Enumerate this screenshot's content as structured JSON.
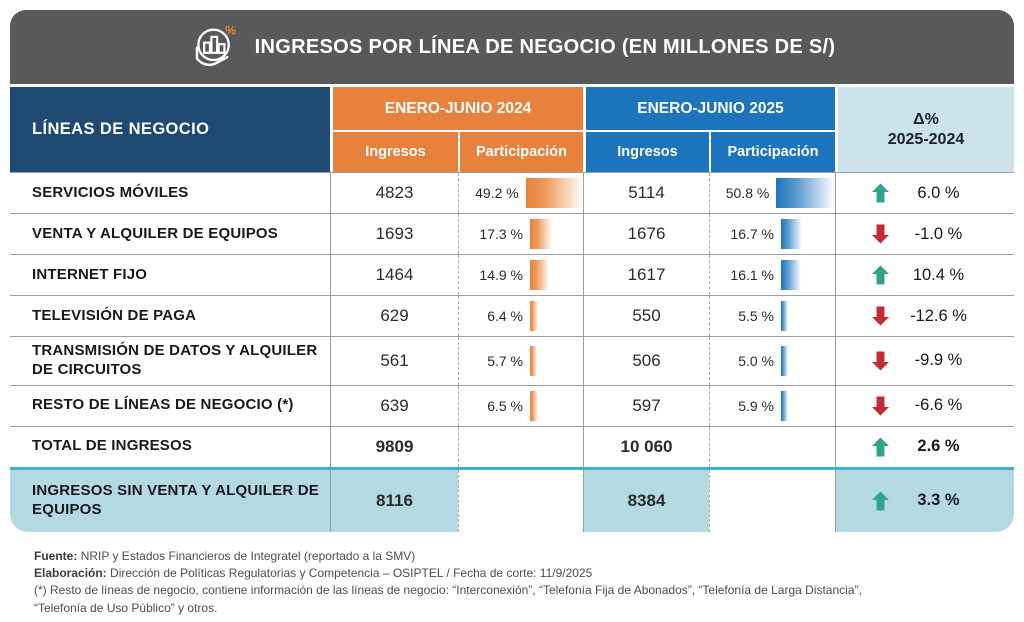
{
  "header": {
    "title": "INGRESOS POR LÍNEA DE NEGOCIO (EN MILLONES DE S/)"
  },
  "table": {
    "head": {
      "lines": "LÍNEAS DE NEGOCIO",
      "group_2024": "ENERO-JUNIO 2024",
      "group_2025": "ENERO-JUNIO 2025",
      "ingresos": "Ingresos",
      "participacion": "Participación",
      "delta_line1": "Δ%",
      "delta_line2": "2025-2024"
    },
    "rows": [
      {
        "name": "SERVICIOS MÓVILES",
        "ing2024": "4823",
        "part2024": 49.2,
        "part2024_label": "49.2 %",
        "ing2025": "5114",
        "part2025": 50.8,
        "part2025_label": "50.8 %",
        "delta": "6.0 %",
        "trend": "up",
        "total": false,
        "highlight": false
      },
      {
        "name": "VENTA Y ALQUILER DE EQUIPOS",
        "ing2024": "1693",
        "part2024": 17.3,
        "part2024_label": "17.3 %",
        "ing2025": "1676",
        "part2025": 16.7,
        "part2025_label": "16.7 %",
        "delta": "-1.0 %",
        "trend": "down",
        "total": false,
        "highlight": false
      },
      {
        "name": "INTERNET FIJO",
        "ing2024": "1464",
        "part2024": 14.9,
        "part2024_label": "14.9 %",
        "ing2025": "1617",
        "part2025": 16.1,
        "part2025_label": "16.1 %",
        "delta": "10.4 %",
        "trend": "up",
        "total": false,
        "highlight": false
      },
      {
        "name": "TELEVISIÓN DE PAGA",
        "ing2024": "629",
        "part2024": 6.4,
        "part2024_label": "6.4 %",
        "ing2025": "550",
        "part2025": 5.5,
        "part2025_label": "5.5 %",
        "delta": "-12.6 %",
        "trend": "down",
        "total": false,
        "highlight": false
      },
      {
        "name": "TRANSMISIÓN DE DATOS Y ALQUILER DE CIRCUITOS",
        "ing2024": "561",
        "part2024": 5.7,
        "part2024_label": "5.7 %",
        "ing2025": "506",
        "part2025": 5.0,
        "part2025_label": "5.0 %",
        "delta": "-9.9 %",
        "trend": "down",
        "total": false,
        "highlight": false
      },
      {
        "name": "RESTO DE LÍNEAS DE NEGOCIO (*)",
        "ing2024": "639",
        "part2024": 6.5,
        "part2024_label": "6.5 %",
        "ing2025": "597",
        "part2025": 5.9,
        "part2025_label": "5.9 %",
        "delta": "-6.6 %",
        "trend": "down",
        "total": false,
        "highlight": false
      },
      {
        "name": "TOTAL DE INGRESOS",
        "ing2024": "9809",
        "part2024": null,
        "part2024_label": "",
        "ing2025": "10 060",
        "part2025": null,
        "part2025_label": "",
        "delta": "2.6 %",
        "trend": "up",
        "total": true,
        "highlight": false
      },
      {
        "name": "INGRESOS SIN VENTA Y ALQUILER DE EQUIPOS",
        "ing2024": "8116",
        "part2024": null,
        "part2024_label": "",
        "ing2025": "8384",
        "part2025": null,
        "part2025_label": "",
        "delta": "3.3 %",
        "trend": "up",
        "total": true,
        "highlight": true
      }
    ]
  },
  "footer": {
    "fuente_label": "Fuente:",
    "fuente": "NRIP y Estados Financieros de Integratel (reportado a la SMV)",
    "elaboracion_label": "Elaboración:",
    "elaboracion": "Dirección de Políticas Regulatorias y Competencia – OSIPTEL / Fecha de corte: 11/9/2025",
    "note_line1": "(*) Resto de líneas de negocio, contiene información de las líneas de negocio: “Interconexión”, “Telefonía Fija de Abonados”, “Telefonía de Larga Distancia”,",
    "note_line2": "“Telefonía de Uso Público” y otros."
  },
  "colors": {
    "orange": "#E8813B",
    "blue": "#1C75BC",
    "navy": "#1D4973",
    "titlebar_gray": "#58595B",
    "delta_header_bg": "#CCE3EC",
    "highlight_row_bg": "#B5D9E3",
    "teal_divider": "#3BB4C6",
    "up_arrow_green": "#2EA48E",
    "down_arrow_red": "#C42A30"
  },
  "chart_data": {
    "type": "table",
    "title": "INGRESOS POR LÍNEA DE NEGOCIO (EN MILLONES DE S/)",
    "columns": [
      "LÍNEAS DE NEGOCIO",
      "ENERO-JUNIO 2024 Ingresos",
      "ENERO-JUNIO 2024 Participación (%)",
      "ENERO-JUNIO 2025 Ingresos",
      "ENERO-JUNIO 2025 Participación (%)",
      "Δ% 2025-2024"
    ],
    "rows": [
      [
        "SERVICIOS MÓVILES",
        4823,
        49.2,
        5114,
        50.8,
        6.0
      ],
      [
        "VENTA Y ALQUILER DE EQUIPOS",
        1693,
        17.3,
        1676,
        16.7,
        -1.0
      ],
      [
        "INTERNET FIJO",
        1464,
        14.9,
        1617,
        16.1,
        10.4
      ],
      [
        "TELEVISIÓN DE PAGA",
        629,
        6.4,
        550,
        5.5,
        -12.6
      ],
      [
        "TRANSMISIÓN DE DATOS Y ALQUILER DE CIRCUITOS",
        561,
        5.7,
        506,
        5.0,
        -9.9
      ],
      [
        "RESTO DE LÍNEAS DE NEGOCIO (*)",
        639,
        6.5,
        597,
        5.9,
        -6.6
      ],
      [
        "TOTAL DE INGRESOS",
        9809,
        null,
        10060,
        null,
        2.6
      ],
      [
        "INGRESOS SIN VENTA Y ALQUILER DE EQUIPOS",
        8116,
        null,
        8384,
        null,
        3.3
      ]
    ]
  }
}
